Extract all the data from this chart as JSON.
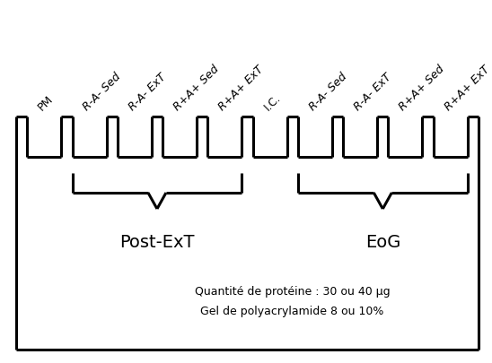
{
  "figure_width": 5.48,
  "figure_height": 4.05,
  "dpi": 100,
  "background_color": "#ffffff",
  "border_color": "#000000",
  "lane_labels": [
    "PM",
    "R-A- Sed",
    "R-A- ExT",
    "R+A+ Sed",
    "R+A+ ExT",
    "I.C.",
    "R-A- Sed",
    "R-A- ExT",
    "R+A+ Sed",
    "R+A+ ExT"
  ],
  "lane_label_italic": [
    false,
    true,
    true,
    true,
    true,
    false,
    true,
    true,
    true,
    true
  ],
  "group1_label": "Post-ExT",
  "group2_label": "EoG",
  "note_line1": "Quantité de protéine : 30 ou 40 μg",
  "note_line2": "Gel de polyacrylamide 8 ou 10%",
  "line_width": 2.2,
  "font_size_labels": 9,
  "font_size_group": 14,
  "font_size_note": 9,
  "label_rotation": 45,
  "n_wells": 10,
  "group1_wells": [
    1,
    4
  ],
  "group2_wells": [
    6,
    9
  ]
}
